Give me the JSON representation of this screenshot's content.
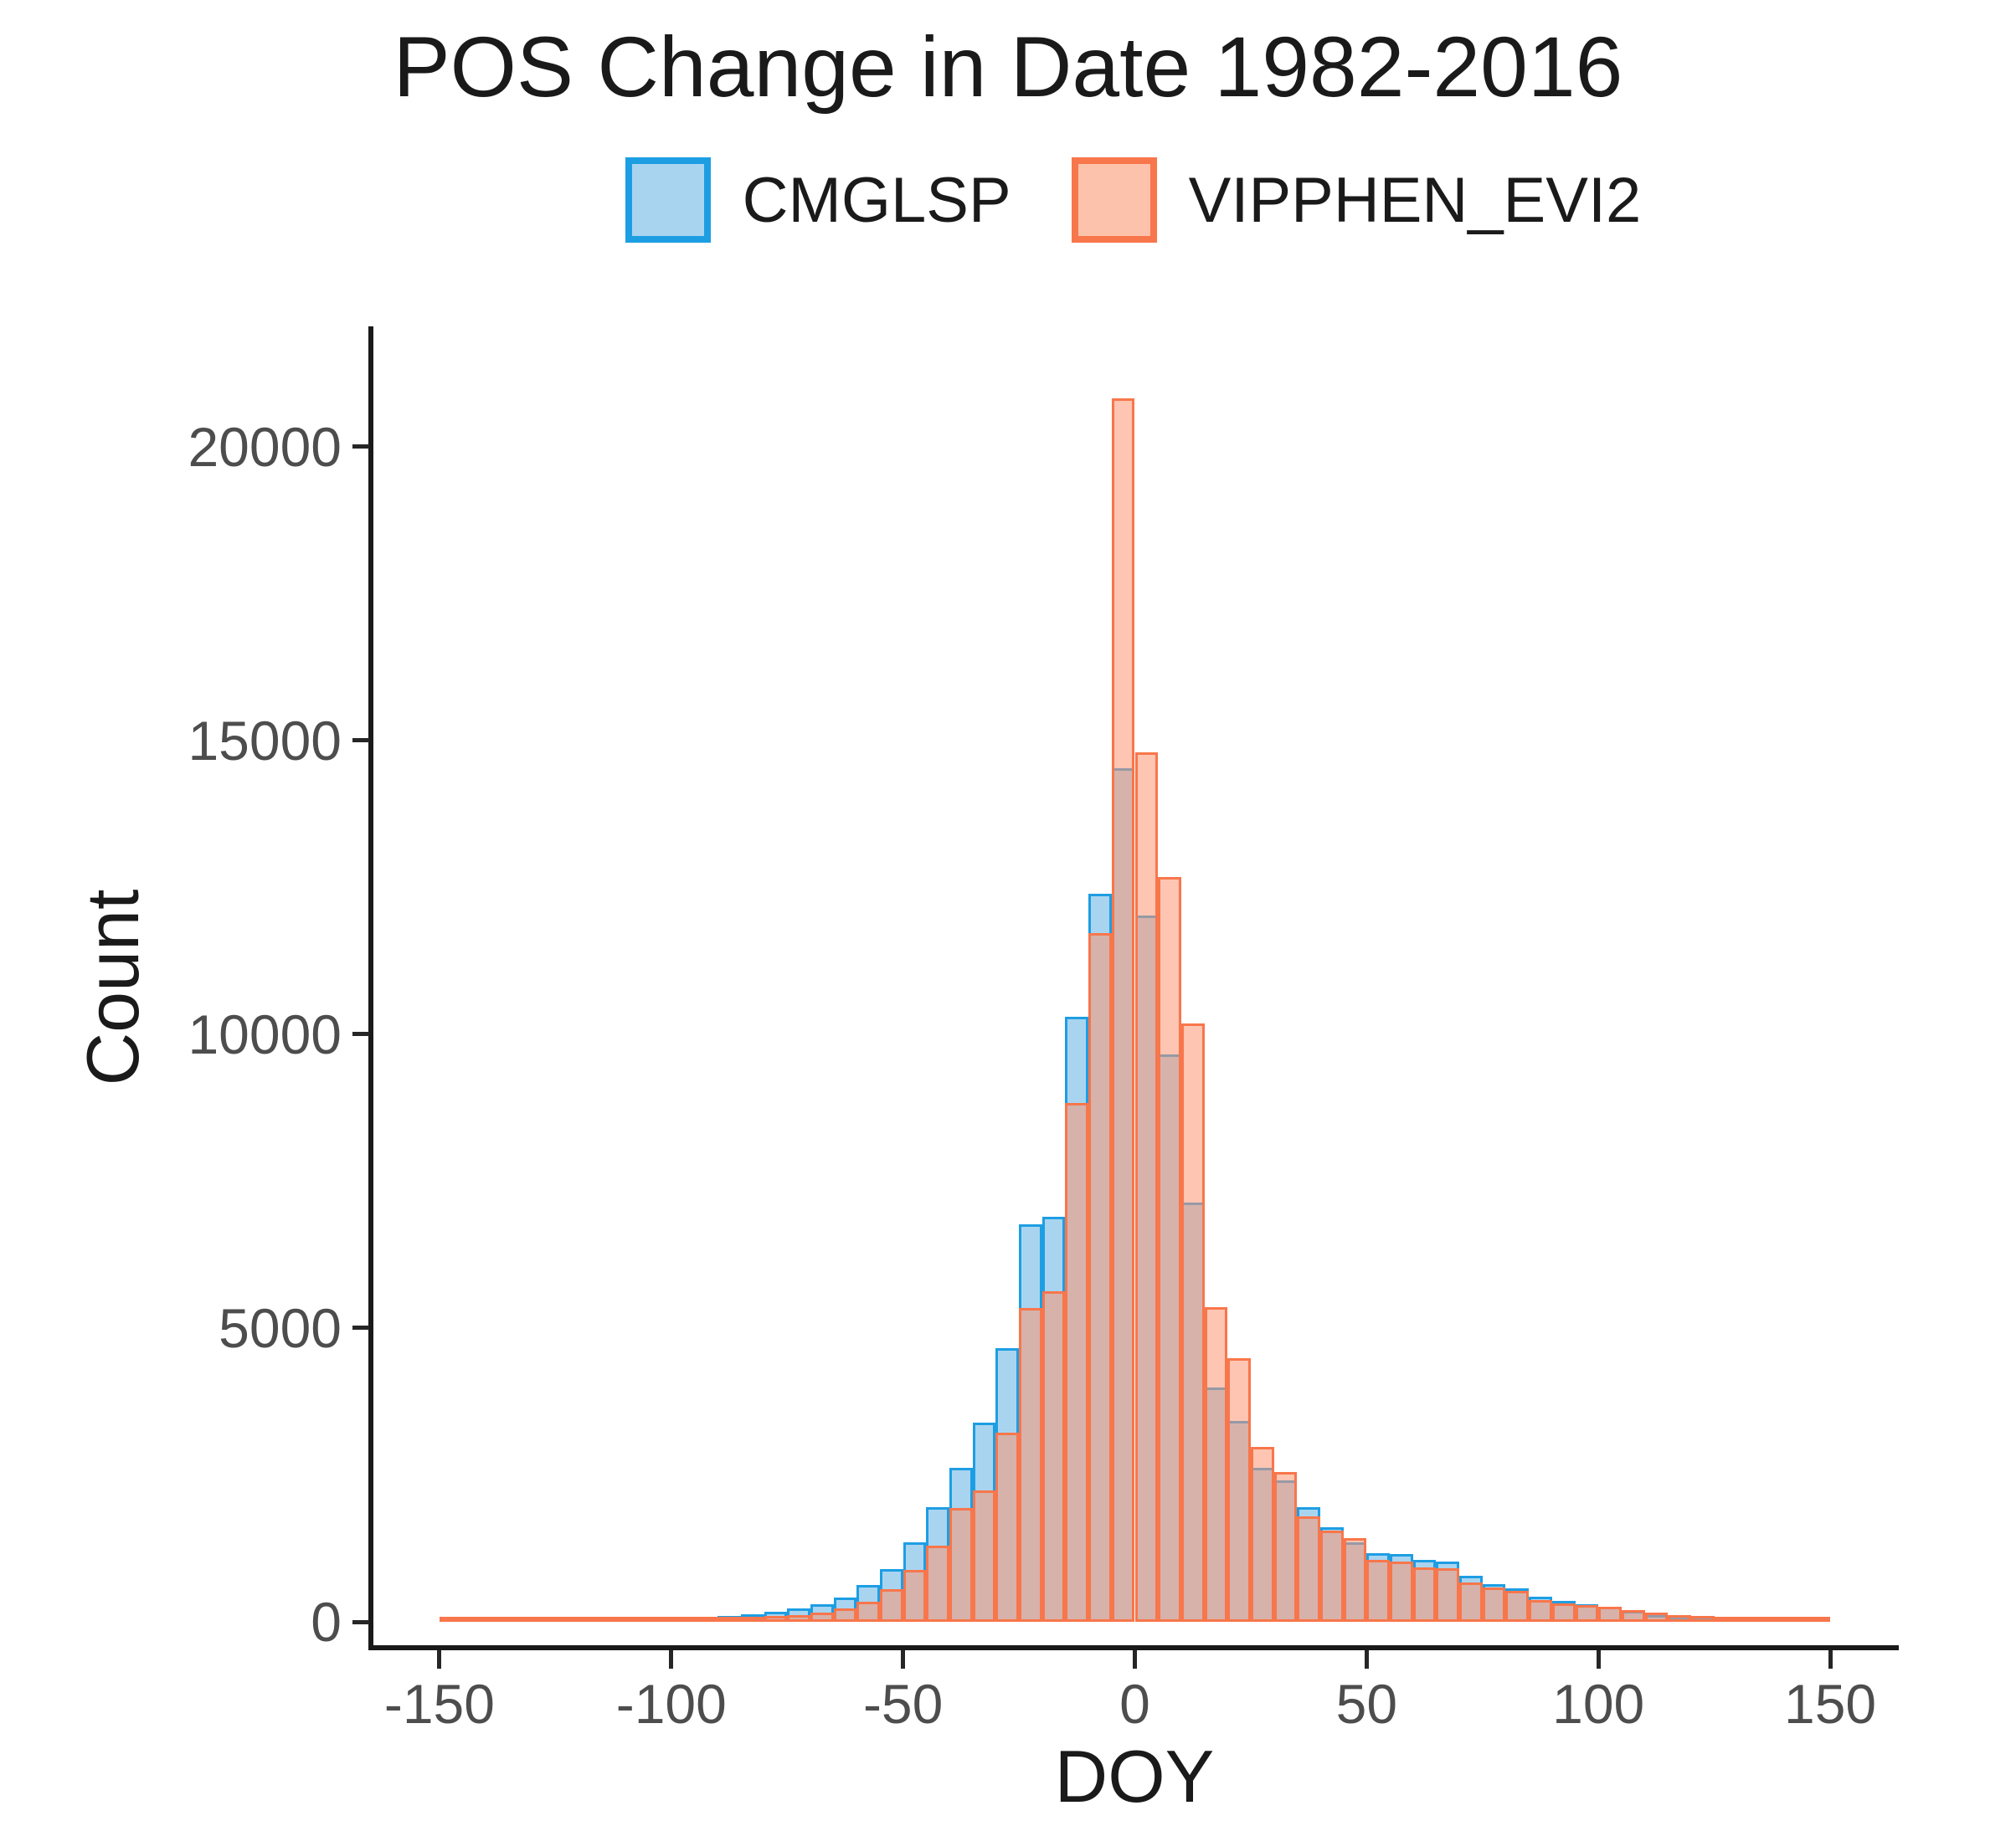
{
  "title": "POS Change in Date 1982-2016",
  "legend": {
    "items": [
      {
        "label": "CMGLSP",
        "fill": "#A9D4F0",
        "border": "#1D9EE3"
      },
      {
        "label": "VIPPHEN_EVI2",
        "fill": "#FCC2AB",
        "border": "#F8764B"
      }
    ]
  },
  "axes": {
    "y": {
      "title": "Count",
      "ticks": [
        0,
        5000,
        10000,
        15000,
        20000
      ],
      "range": [
        0,
        21000
      ]
    },
    "x": {
      "title": "DOY",
      "ticks": [
        -150,
        -100,
        -50,
        0,
        50,
        100,
        150
      ],
      "range": [
        -160,
        165
      ]
    }
  },
  "chart_data": {
    "type": "bar",
    "subtype": "overlaid-histogram",
    "title": "POS Change in Date 1982-2016",
    "xlabel": "DOY",
    "ylabel": "Count",
    "bin_width": 5,
    "bin_start": -150,
    "xlim": [
      -160,
      165
    ],
    "ylim": [
      0,
      21000
    ],
    "grid": false,
    "legend_position": "top-center",
    "series": [
      {
        "name": "CMGLSP",
        "fill": "#A9D4F0",
        "border": "#1D9EE3",
        "values": [
          22,
          25,
          28,
          31,
          34,
          38,
          42,
          46,
          52,
          58,
          68,
          80,
          100,
          130,
          170,
          230,
          300,
          420,
          630,
          900,
          1350,
          1950,
          2620,
          3390,
          4650,
          6760,
          6890,
          10290,
          12390,
          14530,
          12020,
          9650,
          7140,
          3990,
          3420,
          2620,
          2400,
          1950,
          1610,
          1360,
          1170,
          1150,
          1060,
          1030,
          785,
          640,
          570,
          425,
          350,
          300,
          250,
          180,
          120,
          90,
          70,
          60,
          50,
          45,
          35,
          20
        ]
      },
      {
        "name": "VIPPHEN_EVI2",
        "fill": "#FCC2AB",
        "fill_rgba": "rgba(252,150,114,0.55)",
        "border": "#F8764B",
        "values": [
          16,
          20,
          23,
          26,
          28,
          31,
          34,
          38,
          42,
          45,
          50,
          58,
          68,
          80,
          95,
          120,
          160,
          230,
          340,
          550,
          885,
          1300,
          1940,
          2240,
          3220,
          5340,
          5625,
          8830,
          11720,
          20820,
          14790,
          12680,
          10180,
          5350,
          4490,
          2980,
          2550,
          1790,
          1550,
          1420,
          1060,
          1030,
          925,
          905,
          670,
          585,
          530,
          375,
          310,
          290,
          260,
          200,
          150,
          120,
          100,
          85,
          75,
          70,
          55,
          30
        ]
      }
    ]
  }
}
